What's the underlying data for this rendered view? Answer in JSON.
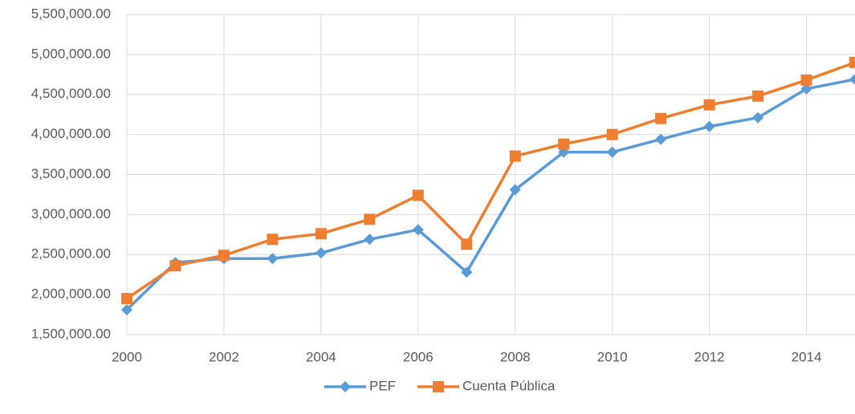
{
  "chart_data": {
    "type": "line",
    "x": [
      2000,
      2001,
      2002,
      2003,
      2004,
      2005,
      2006,
      2007,
      2008,
      2009,
      2010,
      2011,
      2012,
      2013,
      2014,
      2015
    ],
    "series": [
      {
        "name": "PEF",
        "color": "#5b9bd5",
        "marker": "diamond",
        "values": [
          1810000,
          2400000,
          2450000,
          2450000,
          2520000,
          2690000,
          2810000,
          2280000,
          3310000,
          3780000,
          3780000,
          3940000,
          4100000,
          4210000,
          4570000,
          4690000
        ]
      },
      {
        "name": "Cuenta Pública",
        "color": "#ed7d31",
        "marker": "square",
        "values": [
          1950000,
          2360000,
          2490000,
          2690000,
          2760000,
          2940000,
          3240000,
          2630000,
          3730000,
          3880000,
          4000000,
          4200000,
          4370000,
          4480000,
          4680000,
          4900000
        ]
      }
    ],
    "xlim": [
      2000,
      2015
    ],
    "xticks": [
      2000,
      2002,
      2004,
      2006,
      2008,
      2010,
      2012,
      2014
    ],
    "ylim": [
      1500000,
      5500000
    ],
    "yticks": [
      {
        "value": 1500000,
        "label": "1,500,000.00"
      },
      {
        "value": 2000000,
        "label": "2,000,000.00"
      },
      {
        "value": 2500000,
        "label": "2,500,000.00"
      },
      {
        "value": 3000000,
        "label": "3,000,000.00"
      },
      {
        "value": 3500000,
        "label": "3,500,000.00"
      },
      {
        "value": 4000000,
        "label": "4,000,000.00"
      },
      {
        "value": 4500000,
        "label": "4,500,000.00"
      },
      {
        "value": 5000000,
        "label": "5,000,000.00"
      },
      {
        "value": 5500000,
        "label": "5,500,000.00"
      }
    ],
    "grid": true,
    "legend": "bottom"
  }
}
